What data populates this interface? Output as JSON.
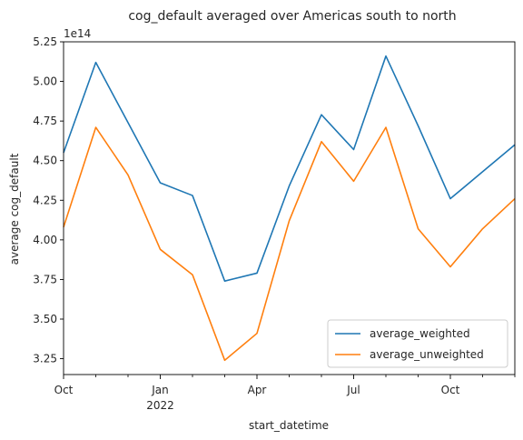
{
  "chart_data": {
    "type": "line",
    "title": "cog_default averaged over Americas south to north",
    "xlabel": "start_datetime",
    "ylabel": "average cog_default",
    "y_offset_label": "1e14",
    "x": [
      "2021-10",
      "2021-11",
      "2021-12",
      "2022-01",
      "2022-02",
      "2022-03",
      "2022-04",
      "2022-05",
      "2022-06",
      "2022-07",
      "2022-08",
      "2022-09",
      "2022-10",
      "2022-11",
      "2022-12"
    ],
    "xlim": [
      "2021-10",
      "2022-12"
    ],
    "ylim": [
      3.15,
      5.25
    ],
    "y_unit_multiplier": 100000000000000.0,
    "yticks": [
      3.25,
      3.5,
      3.75,
      4.0,
      4.25,
      4.5,
      4.75,
      5.0,
      5.25
    ],
    "ytick_labels": [
      "3.25",
      "3.50",
      "3.75",
      "4.00",
      "4.25",
      "4.50",
      "4.75",
      "5.00",
      "5.25"
    ],
    "xtick_labels": [
      {
        "x": "2021-10",
        "line1": "Oct",
        "line2": ""
      },
      {
        "x": "2022-01",
        "line1": "Jan",
        "line2": "2022"
      },
      {
        "x": "2022-04",
        "line1": "Apr",
        "line2": ""
      },
      {
        "x": "2022-07",
        "line1": "Jul",
        "line2": ""
      },
      {
        "x": "2022-10",
        "line1": "Oct",
        "line2": ""
      }
    ],
    "minor_x": [
      "2021-11",
      "2021-12",
      "2022-02",
      "2022-03",
      "2022-05",
      "2022-06",
      "2022-08",
      "2022-09",
      "2022-11",
      "2022-12"
    ],
    "grid": false,
    "legend_position": "lower-right",
    "series": [
      {
        "name": "average_weighted",
        "color": "#1f77b4",
        "values": [
          4.55,
          5.12,
          4.74,
          4.36,
          4.28,
          3.74,
          3.79,
          4.34,
          4.79,
          4.57,
          5.16,
          4.72,
          4.26,
          4.43,
          4.6
        ]
      },
      {
        "name": "average_unweighted",
        "color": "#ff7f0e",
        "values": [
          4.08,
          4.71,
          4.41,
          3.94,
          3.78,
          3.24,
          3.41,
          4.12,
          4.62,
          4.37,
          4.71,
          4.07,
          3.83,
          4.07,
          4.26
        ]
      }
    ]
  }
}
